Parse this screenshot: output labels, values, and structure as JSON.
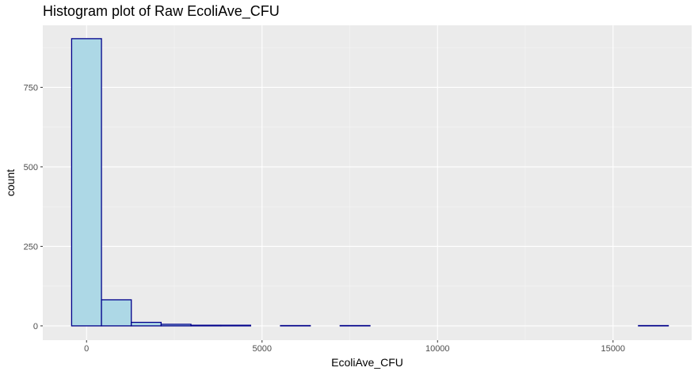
{
  "chart_data": {
    "type": "bar",
    "title": "Histogram plot of Raw EcoliAve_CFU",
    "xlabel": "EcoliAve_CFU",
    "ylabel": "count",
    "xlim": [
      -1247,
      17240
    ],
    "ylim": [
      -45,
      945
    ],
    "x_ticks": [
      0,
      5000,
      10000,
      15000
    ],
    "x_tick_labels": [
      "0",
      "5000",
      "10000",
      "15000"
    ],
    "y_ticks": [
      0,
      250,
      500,
      750
    ],
    "y_tick_labels": [
      "0",
      "250",
      "500",
      "750"
    ],
    "bin_width": 850,
    "bins": [
      {
        "x0": -425,
        "x1": 425,
        "count": 903
      },
      {
        "x0": 425,
        "x1": 1275,
        "count": 82
      },
      {
        "x0": 1275,
        "x1": 2125,
        "count": 11
      },
      {
        "x0": 2125,
        "x1": 2975,
        "count": 5
      },
      {
        "x0": 2975,
        "x1": 3825,
        "count": 2
      },
      {
        "x0": 3825,
        "x1": 4675,
        "count": 2
      },
      {
        "x0": 4675,
        "x1": 5525,
        "count": 0
      },
      {
        "x0": 5525,
        "x1": 6375,
        "count": 1
      },
      {
        "x0": 6375,
        "x1": 7225,
        "count": 0
      },
      {
        "x0": 7225,
        "x1": 8075,
        "count": 1
      },
      {
        "x0": 8075,
        "x1": 8925,
        "count": 0
      },
      {
        "x0": 8925,
        "x1": 9775,
        "count": 0
      },
      {
        "x0": 9775,
        "x1": 10625,
        "count": 0
      },
      {
        "x0": 10625,
        "x1": 11475,
        "count": 0
      },
      {
        "x0": 11475,
        "x1": 12325,
        "count": 0
      },
      {
        "x0": 12325,
        "x1": 13175,
        "count": 0
      },
      {
        "x0": 13175,
        "x1": 14025,
        "count": 0
      },
      {
        "x0": 14025,
        "x1": 14875,
        "count": 0
      },
      {
        "x0": 14875,
        "x1": 15725,
        "count": 0
      },
      {
        "x0": 15725,
        "x1": 16575,
        "count": 1
      }
    ],
    "grid": true,
    "legend": "none",
    "colors": {
      "panel_background": "#ebebeb",
      "grid_major": "#ffffff",
      "grid_minor": "#f5f5f5",
      "bar_fill": "#add8e6",
      "bar_outline": "#00008b",
      "tick_text": "#4d4d4d",
      "tick_mark": "#333333"
    }
  }
}
